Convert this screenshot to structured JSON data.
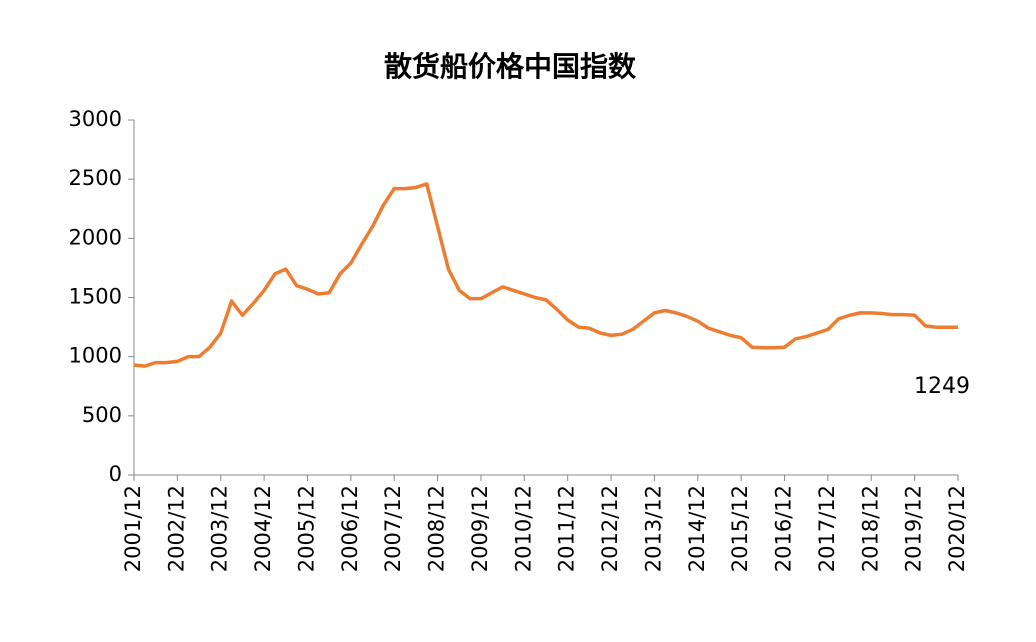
{
  "chart_data": {
    "type": "line",
    "title": "散货船价格中国指数",
    "categories": [
      "2001/12",
      null,
      null,
      null,
      "2002/12",
      null,
      null,
      null,
      "2003/12",
      null,
      null,
      null,
      "2004/12",
      null,
      null,
      null,
      "2005/12",
      null,
      null,
      null,
      "2006/12",
      null,
      null,
      null,
      "2007/12",
      null,
      null,
      null,
      "2008/12",
      null,
      null,
      null,
      "2009/12",
      null,
      null,
      null,
      "2010/12",
      null,
      null,
      null,
      "2011/12",
      null,
      null,
      null,
      "2012/12",
      null,
      null,
      null,
      "2013/12",
      null,
      null,
      null,
      "2014/12",
      null,
      null,
      null,
      "2015/12",
      null,
      null,
      null,
      "2016/12",
      null,
      null,
      null,
      "2017/12",
      null,
      null,
      null,
      "2018/12",
      null,
      null,
      null,
      "2019/12",
      null,
      null,
      null,
      "2020/12"
    ],
    "series": [
      {
        "name": "散货船价格中国指数",
        "color": "#ed7d31",
        "values": [
          930,
          920,
          950,
          950,
          960,
          1000,
          1000,
          1080,
          1200,
          1470,
          1350,
          1450,
          1560,
          1700,
          1740,
          1600,
          1570,
          1530,
          1540,
          1700,
          1790,
          1950,
          2100,
          2280,
          2420,
          2420,
          2430,
          2460,
          2100,
          1740,
          1560,
          1490,
          1490,
          1540,
          1590,
          1560,
          1530,
          1500,
          1480,
          1400,
          1310,
          1250,
          1240,
          1200,
          1180,
          1190,
          1230,
          1300,
          1370,
          1390,
          1370,
          1340,
          1300,
          1240,
          1210,
          1180,
          1160,
          1080,
          1075,
          1075,
          1080,
          1150,
          1170,
          1200,
          1230,
          1320,
          1350,
          1370,
          1370,
          1365,
          1355,
          1355,
          1350,
          1260,
          1249,
          1249,
          1249
        ]
      }
    ],
    "annotation": "1249",
    "ylim": [
      0,
      3000
    ],
    "yticks": [
      0,
      500,
      1000,
      1500,
      2000,
      2500,
      3000
    ],
    "grid": false,
    "legend": false
  }
}
